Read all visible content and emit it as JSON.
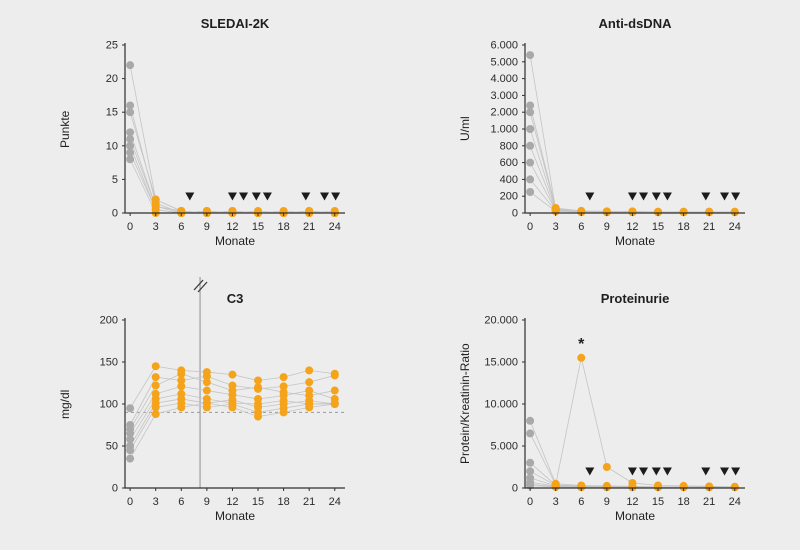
{
  "page": {
    "background": "#ededed"
  },
  "style": {
    "baseline_dot": "#a9a9a9",
    "followup_dot": "#f5a31b",
    "line_color": "#c4c4c4",
    "axis_color": "#2f2f2f",
    "triangle_color": "#1c1c1c"
  },
  "chart_data": [
    {
      "type": "scatter",
      "title": "SLEDAI-2K",
      "ylabel": "Punkte",
      "xlabel": "Monate",
      "months": [
        0,
        3,
        6,
        9,
        12,
        15,
        18,
        21,
        24
      ],
      "xticks": [
        "0",
        "3",
        "6",
        "9",
        "12",
        "15",
        "18",
        "21",
        "24"
      ],
      "yticks": [
        {
          "value": 0,
          "label": "0"
        },
        {
          "value": 5,
          "label": "5"
        },
        {
          "value": 10,
          "label": "10"
        },
        {
          "value": 15,
          "label": "15"
        },
        {
          "value": 20,
          "label": "20"
        },
        {
          "value": 25,
          "label": "25"
        }
      ],
      "triangle_months": [
        7,
        12,
        13.3,
        14.8,
        16.1,
        20.6,
        22.8,
        24.1
      ],
      "series": [
        [
          22,
          2,
          0.3,
          0,
          0.3,
          0,
          0,
          0.3,
          0
        ],
        [
          16,
          1.5,
          0,
          0.3,
          0,
          0,
          0.3,
          0,
          0
        ],
        [
          15,
          2,
          0.3,
          0,
          0,
          0.3,
          0,
          0,
          0.3
        ],
        [
          12,
          1,
          0,
          0,
          0.3,
          0,
          0,
          0,
          0
        ],
        [
          11,
          1,
          0.3,
          0,
          0,
          0,
          0,
          0.3,
          0
        ],
        [
          10,
          0.5,
          0,
          0,
          0,
          0,
          0,
          0,
          0
        ],
        [
          9,
          0.5,
          0,
          0.3,
          0,
          0,
          0,
          0,
          0
        ],
        [
          8,
          0,
          0,
          0,
          0,
          0,
          0,
          0,
          0
        ]
      ]
    },
    {
      "type": "scatter",
      "title": "Anti-dsDNA",
      "ylabel": "U/ml",
      "xlabel": "Monate",
      "months": [
        0,
        3,
        6,
        9,
        12,
        15,
        18,
        21,
        24
      ],
      "xticks": [
        "0",
        "3",
        "6",
        "9",
        "12",
        "15",
        "18",
        "21",
        "24"
      ],
      "yticks": [
        {
          "value": 0,
          "label": "0"
        },
        {
          "value": 200,
          "label": "200"
        },
        {
          "value": 400,
          "label": "400"
        },
        {
          "value": 600,
          "label": "600"
        },
        {
          "value": 800,
          "label": "800"
        },
        {
          "value": 1000,
          "label": "1.000"
        },
        {
          "value": 2000,
          "label": "2.000"
        },
        {
          "value": 3000,
          "label": "3.000"
        },
        {
          "value": 4000,
          "label": "4.000"
        },
        {
          "value": 5000,
          "label": "5.000"
        },
        {
          "value": 6000,
          "label": "6.000"
        }
      ],
      "triangle_months": [
        7,
        12,
        13.3,
        14.8,
        16.1,
        20.6,
        22.8,
        24.1
      ],
      "series": [
        [
          5400,
          40,
          15,
          10,
          15,
          10,
          10,
          15,
          10
        ],
        [
          2400,
          60,
          25,
          20,
          15,
          15,
          10,
          10,
          15
        ],
        [
          2000,
          50,
          20,
          15,
          20,
          10,
          15,
          10,
          10
        ],
        [
          1000,
          40,
          15,
          10,
          10,
          15,
          10,
          15,
          10
        ],
        [
          800,
          30,
          20,
          15,
          10,
          10,
          15,
          10,
          10
        ],
        [
          600,
          30,
          15,
          10,
          15,
          10,
          10,
          10,
          15
        ],
        [
          400,
          25,
          10,
          10,
          10,
          10,
          10,
          10,
          10
        ],
        [
          250,
          20,
          10,
          10,
          10,
          10,
          10,
          10,
          10
        ]
      ]
    },
    {
      "type": "scatter",
      "title": "C3",
      "ylabel": "mg/dl",
      "xlabel": "Monate",
      "months": [
        0,
        3,
        6,
        9,
        12,
        15,
        18,
        21,
        24
      ],
      "xticks": [
        "0",
        "3",
        "6",
        "9",
        "12",
        "15",
        "18",
        "21",
        "24"
      ],
      "yticks": [
        {
          "value": 0,
          "label": "0"
        },
        {
          "value": 50,
          "label": "50"
        },
        {
          "value": 100,
          "label": "100"
        },
        {
          "value": 150,
          "label": "150"
        },
        {
          "value": 200,
          "label": "200"
        }
      ],
      "ref_line_y": 90,
      "vline_x": 8.2,
      "series": [
        [
          95,
          145,
          140,
          138,
          135,
          128,
          132,
          140,
          136
        ],
        [
          75,
          132,
          128,
          133,
          122,
          118,
          121,
          126,
          134
        ],
        [
          70,
          122,
          136,
          126,
          116,
          120,
          114,
          110,
          116
        ],
        [
          65,
          112,
          121,
          116,
          111,
          106,
          110,
          116,
          106
        ],
        [
          58,
          106,
          112,
          106,
          101,
          100,
          104,
          100,
          101
        ],
        [
          50,
          101,
          106,
          101,
          105,
          96,
          100,
          104,
          100
        ],
        [
          45,
          96,
          101,
          96,
          100,
          90,
          95,
          100,
          100
        ],
        [
          35,
          88,
          96,
          101,
          96,
          85,
          90,
          96,
          100
        ]
      ]
    },
    {
      "type": "scatter",
      "title": "Proteinurie",
      "ylabel": "Protein/Kreatinin-Ratio",
      "xlabel": "Monate",
      "months": [
        0,
        3,
        6,
        9,
        12,
        15,
        18,
        21,
        24
      ],
      "xticks": [
        "0",
        "3",
        "6",
        "9",
        "12",
        "15",
        "18",
        "21",
        "24"
      ],
      "yticks": [
        {
          "value": 0,
          "label": "0"
        },
        {
          "value": 5000,
          "label": "5.000"
        },
        {
          "value": 10000,
          "label": "10.000"
        },
        {
          "value": 15000,
          "label": "15.000"
        },
        {
          "value": 20000,
          "label": "20.000"
        }
      ],
      "triangle_months": [
        7,
        12,
        13.3,
        14.8,
        16.1,
        20.6,
        22.8,
        24.1
      ],
      "annotation": {
        "x": 6,
        "y": 15500,
        "text": "*"
      },
      "series": [
        [
          8000,
          500,
          300,
          250,
          200,
          150,
          150,
          120,
          100
        ],
        [
          6500,
          400,
          15500,
          2500,
          600,
          300,
          250,
          200,
          150
        ],
        [
          3000,
          350,
          250,
          200,
          150,
          120,
          100,
          100,
          100
        ],
        [
          2000,
          300,
          200,
          150,
          120,
          100,
          100,
          100,
          100
        ],
        [
          1200,
          250,
          150,
          120,
          100,
          100,
          100,
          100,
          100
        ],
        [
          700,
          200,
          120,
          100,
          100,
          100,
          100,
          100,
          100
        ],
        [
          450,
          150,
          100,
          100,
          100,
          100,
          100,
          100,
          100
        ],
        [
          300,
          120,
          100,
          100,
          100,
          100,
          100,
          100,
          100
        ]
      ]
    }
  ]
}
